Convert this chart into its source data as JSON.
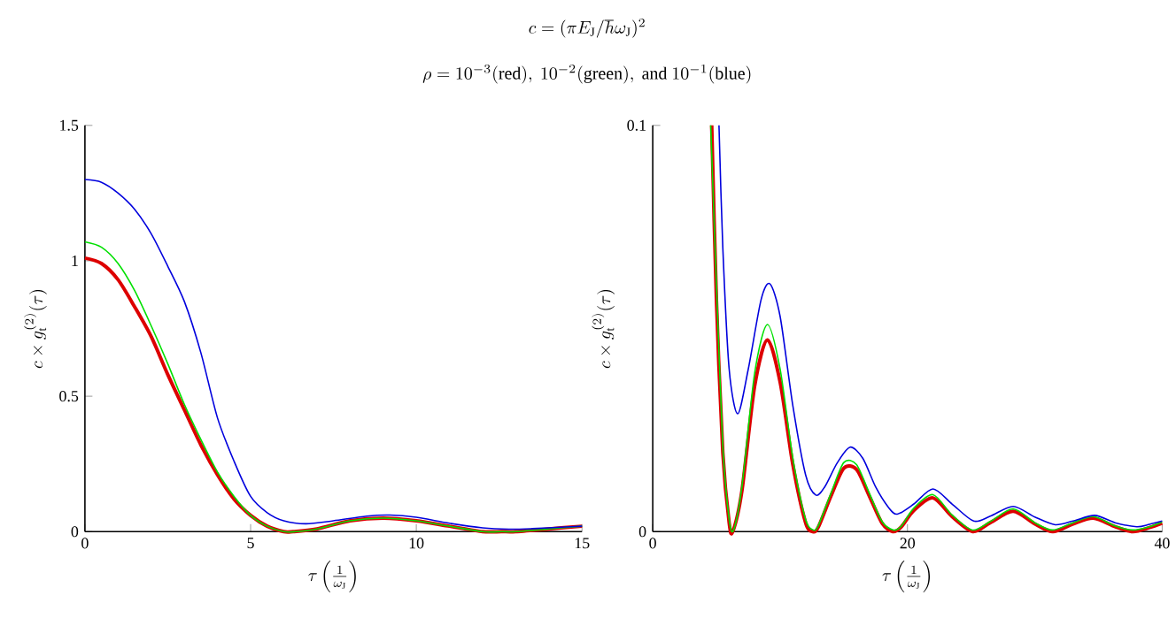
{
  "chart_data": [
    {
      "type": "line",
      "title": "c=(\\pi E_\\mathrm{J}/\\hbar\\omega_\\mathrm{J})^2",
      "subtitle": "\\rho=10^{-3}(\\mathrm{red}),\\ 10^{-2}(\\mathrm{green}),\\ \\mathrm{and}\\ 10^{-1}(\\mathrm{blue})",
      "xlabel": "\\tau\\left(\\frac{1}{\\omega_\\mathrm{J}}\\right)",
      "ylabel": "c\\times g_\\mathrm{t}^{(2)}(\\tau)",
      "xlim": [
        0,
        15
      ],
      "ylim": [
        0,
        1.5
      ],
      "xticks": [
        0,
        5,
        10,
        15
      ],
      "yticks": [
        0,
        0.5,
        1,
        1.5
      ],
      "series": [
        {
          "color": "#dd0000",
          "x": [
            0,
            0.5,
            1,
            1.5,
            2,
            2.5,
            3,
            3.5,
            4,
            4.5,
            5,
            5.5,
            6,
            6.28,
            7,
            8,
            9,
            10,
            11,
            12,
            12.57,
            13,
            14,
            15
          ],
          "values": [
            1.01,
            0.99,
            0.93,
            0.83,
            0.72,
            0.58,
            0.45,
            0.32,
            0.21,
            0.12,
            0.06,
            0.02,
            0,
            0,
            0.01,
            0.04,
            0.05,
            0.04,
            0.02,
            0,
            0,
            0,
            0.01,
            0.02
          ]
        },
        {
          "color": "#00e000",
          "x": [
            0,
            0.5,
            1,
            1.5,
            2,
            2.5,
            3,
            3.5,
            4,
            4.5,
            5,
            5.5,
            6,
            6.35,
            7,
            8,
            9,
            10,
            11,
            12,
            12.6,
            13,
            14,
            15
          ],
          "values": [
            1.07,
            1.05,
            0.99,
            0.89,
            0.76,
            0.62,
            0.47,
            0.34,
            0.22,
            0.13,
            0.06,
            0.02,
            0,
            0,
            0.01,
            0.04,
            0.05,
            0.04,
            0.02,
            0,
            0,
            0,
            0.01,
            0.02
          ]
        },
        {
          "color": "#0000dd",
          "x": [
            0,
            0.5,
            1,
            1.5,
            2,
            2.5,
            3,
            3.5,
            4,
            4.5,
            5,
            5.5,
            6,
            6.67,
            7.5,
            8.5,
            9.2,
            10,
            11,
            12,
            12.8,
            13.5,
            14.5,
            15
          ],
          "values": [
            1.3,
            1.29,
            1.25,
            1.19,
            1.1,
            0.98,
            0.85,
            0.66,
            0.42,
            0.26,
            0.13,
            0.07,
            0.04,
            0.029,
            0.04,
            0.057,
            0.061,
            0.053,
            0.031,
            0.014,
            0.009,
            0.011,
            0.017,
            0.02
          ]
        }
      ]
    },
    {
      "type": "line",
      "xlabel": "\\tau\\left(\\frac{1}{\\omega_\\mathrm{J}}\\right)",
      "ylabel": "c\\times g_\\mathrm{t}^{(2)}(\\tau)",
      "xlim": [
        0,
        40
      ],
      "ylim": [
        0,
        0.1
      ],
      "xticks": [
        0,
        20,
        40
      ],
      "yticks": [
        0,
        0.1
      ],
      "series": [
        {
          "color": "#dd0000",
          "x": [
            4.63,
            5,
            5.5,
            6,
            6.28,
            7,
            8,
            9,
            10,
            11,
            12,
            12.57,
            13,
            14,
            15,
            16,
            17,
            18,
            18.85,
            19.5,
            20.5,
            22,
            23.5,
            25.13,
            26.5,
            28.3,
            30,
            31.42,
            33,
            34.6,
            36.3,
            37.7,
            39,
            40
          ],
          "values": [
            0.1,
            0.057,
            0.0195,
            0.0022,
            0,
            0.01,
            0.0358,
            0.0472,
            0.0368,
            0.0165,
            0.0022,
            0,
            0.0011,
            0.0088,
            0.0156,
            0.0153,
            0.0088,
            0.0021,
            0,
            0.0011,
            0.0052,
            0.0083,
            0.0037,
            0,
            0.0022,
            0.005,
            0.0019,
            0,
            0.0019,
            0.0033,
            0.0012,
            0,
            0.001,
            0.0021
          ]
        },
        {
          "color": "#00e000",
          "x": [
            4.55,
            5,
            5.5,
            6,
            6.35,
            7,
            8,
            9,
            10,
            11,
            12,
            12.6,
            13,
            14,
            15,
            16,
            17,
            18,
            18.9,
            19.5,
            20.5,
            22,
            23.5,
            25.1,
            26.5,
            28.3,
            30,
            31.4,
            33,
            34.6,
            36.3,
            37.7,
            39,
            40
          ],
          "values": [
            0.1,
            0.061,
            0.021,
            0.003,
            0.0004,
            0.011,
            0.039,
            0.051,
            0.04,
            0.018,
            0.003,
            0.0004,
            0.0015,
            0.0095,
            0.017,
            0.0165,
            0.0095,
            0.0025,
            0.0004,
            0.0013,
            0.0058,
            0.0091,
            0.0041,
            0.0004,
            0.0025,
            0.0056,
            0.0022,
            0.0004,
            0.0022,
            0.0037,
            0.0014,
            0.0004,
            0.0012,
            0.0024
          ]
        },
        {
          "color": "#0000dd",
          "x": [
            5.2,
            5.5,
            6,
            6.67,
            7.5,
            8.5,
            9.2,
            10,
            11,
            12,
            12.8,
            13.5,
            14.5,
            15.5,
            16.5,
            17.5,
            18.5,
            19.2,
            20.5,
            22,
            23.5,
            25.2,
            26.5,
            28.3,
            30,
            31.6,
            33,
            34.7,
            36.3,
            38,
            39,
            40
          ],
          "values": [
            0.1,
            0.07,
            0.04,
            0.029,
            0.04,
            0.057,
            0.061,
            0.053,
            0.031,
            0.014,
            0.009,
            0.011,
            0.017,
            0.0208,
            0.018,
            0.011,
            0.006,
            0.0043,
            0.0068,
            0.0105,
            0.0068,
            0.0026,
            0.0038,
            0.0062,
            0.0036,
            0.0017,
            0.0026,
            0.004,
            0.0022,
            0.0012,
            0.0018,
            0.0026
          ]
        }
      ]
    }
  ]
}
